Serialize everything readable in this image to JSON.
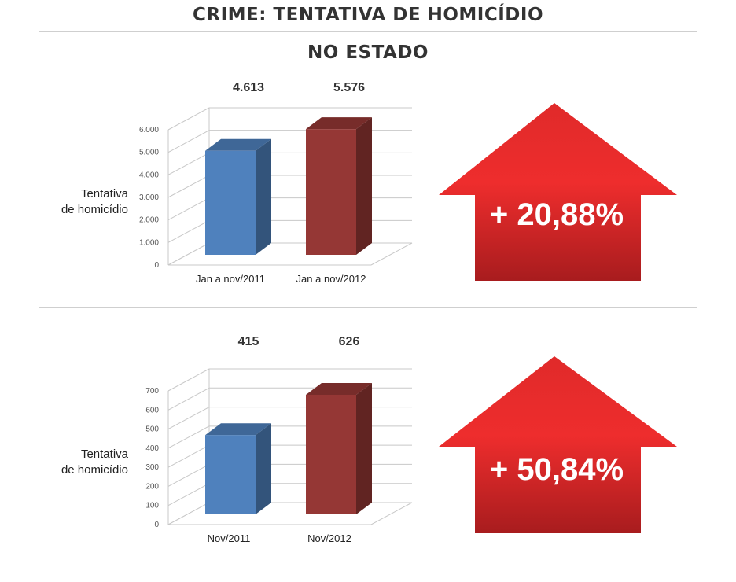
{
  "header": {
    "title": "CRIME: TENTATIVA DE HOMICÍDIO",
    "subtitle": "NO ESTADO"
  },
  "chart_data": [
    {
      "type": "bar",
      "categories": [
        "Jan a nov/2011",
        "Jan a nov/2012"
      ],
      "values": [
        4613,
        5576
      ],
      "value_labels": [
        "4.613",
        "5.576"
      ],
      "ylabel": [
        "Tentativa",
        "de homicídio"
      ],
      "ylim": [
        0,
        6000
      ],
      "yticks": [
        "0",
        "1.000",
        "2.000",
        "3.000",
        "4.000",
        "5.000",
        "6.000"
      ],
      "ytick_values": [
        0,
        1000,
        2000,
        3000,
        4000,
        5000,
        6000
      ],
      "grid": true,
      "colors": [
        "#4f81bd",
        "#953735"
      ],
      "change_label": "+ 20,88%"
    },
    {
      "type": "bar",
      "categories": [
        "Nov/2011",
        "Nov/2012"
      ],
      "values": [
        415,
        626
      ],
      "value_labels": [
        "415",
        "626"
      ],
      "ylabel": [
        "Tentativa",
        "de homicídio"
      ],
      "ylim": [
        0,
        700
      ],
      "yticks": [
        "0",
        "100",
        "200",
        "300",
        "400",
        "500",
        "600",
        "700"
      ],
      "ytick_values": [
        0,
        100,
        200,
        300,
        400,
        500,
        600,
        700
      ],
      "grid": true,
      "colors": [
        "#4f81bd",
        "#953735"
      ],
      "change_label": "+ 50,84%"
    }
  ],
  "colors": {
    "arrow": "#e8262a",
    "arrow_dark": "#a81c1e",
    "text": "#333333"
  },
  "icons": [
    "up-arrow-icon"
  ]
}
